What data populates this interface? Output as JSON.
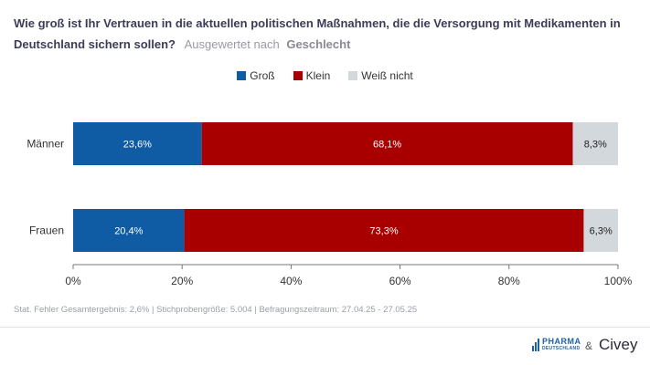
{
  "header": {
    "title": "Wie groß ist Ihr Vertrauen in die aktuellen politischen Maßnahmen, die die Versorgung mit Medikamenten in Deutschland sichern sollen?",
    "evaluated_by": "Ausgewertet nach",
    "group": "Geschlecht"
  },
  "colors": {
    "gross": "#0f5ca4",
    "klein": "#a80000",
    "weiss_nicht": "#d3d8dd",
    "axis": "#777777"
  },
  "chart_data": {
    "type": "bar",
    "orientation": "horizontal",
    "stacked": true,
    "categories": [
      "Männer",
      "Frauen"
    ],
    "series": [
      {
        "name": "Groß",
        "values": [
          23.6,
          20.4
        ],
        "labels": [
          "23,6%",
          "20,4%"
        ]
      },
      {
        "name": "Klein",
        "values": [
          68.1,
          73.3
        ],
        "labels": [
          "68,1%",
          "73,3%"
        ]
      },
      {
        "name": "Weiß nicht",
        "values": [
          8.3,
          6.3
        ],
        "labels": [
          "8,3%",
          "6,3%"
        ]
      }
    ],
    "xlim": [
      0,
      100
    ],
    "xticks": [
      0,
      20,
      40,
      60,
      80,
      100
    ],
    "xtick_labels": [
      "0%",
      "20%",
      "40%",
      "60%",
      "80%",
      "100%"
    ],
    "legend_position": "top-center",
    "grid": false
  },
  "footer": {
    "note": "Stat. Fehler Gesamtergebnis: 2,6% | Stichprobengröße: 5.004 | Befragungszeitraum: 27.04.25 - 27.05.25",
    "pharma_logo_line1": "PHARMA",
    "pharma_logo_line2": "DEUTSCHLAND",
    "ampersand": "&",
    "civey_logo": "Civey"
  }
}
